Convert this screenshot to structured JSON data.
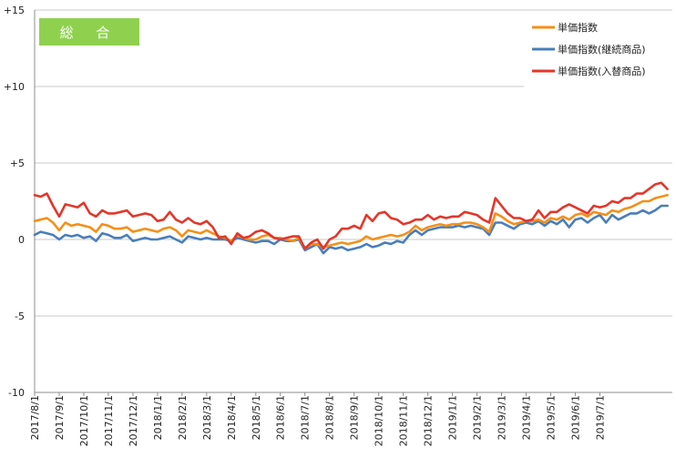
{
  "badge": {
    "label": "総 合",
    "color": "#8fd14f"
  },
  "chart_data": {
    "type": "line",
    "ylim": [
      -10,
      15
    ],
    "y_ticks": [
      {
        "value": 15,
        "label": "+15"
      },
      {
        "value": 10,
        "label": "+10"
      },
      {
        "value": 5,
        "label": "+5"
      },
      {
        "value": 0,
        "label": "0"
      },
      {
        "value": -5,
        "label": "-5"
      },
      {
        "value": -10,
        "label": "-10"
      }
    ],
    "grid": "horizontal",
    "legend_position": "top-right",
    "x_tick_labels": [
      "2017/8/1",
      "2017/9/1",
      "2017/10/1",
      "2017/11/1",
      "2017/12/1",
      "2018/1/1",
      "2018/2/1",
      "2018/3/1",
      "2018/4/1",
      "2018/5/1",
      "2018/6/1",
      "2018/7/1",
      "2018/8/1",
      "2018/9/1",
      "2018/10/1",
      "2018/11/1",
      "2018/12/1",
      "2019/1/1",
      "2019/2/1",
      "2019/3/1",
      "2019/4/1",
      "2019/5/1",
      "2019/6/1",
      "2019/7/1"
    ],
    "series": [
      {
        "name": "単価指数",
        "color": "#f39019",
        "points": [
          [
            0,
            1.2
          ],
          [
            0.25,
            1.3
          ],
          [
            0.5,
            1.4
          ],
          [
            0.75,
            1.1
          ],
          [
            1,
            0.6
          ],
          [
            1.25,
            1.1
          ],
          [
            1.5,
            0.9
          ],
          [
            1.75,
            1.0
          ],
          [
            2,
            0.9
          ],
          [
            2.25,
            0.8
          ],
          [
            2.5,
            0.5
          ],
          [
            2.75,
            1.0
          ],
          [
            3,
            0.9
          ],
          [
            3.25,
            0.7
          ],
          [
            3.5,
            0.7
          ],
          [
            3.75,
            0.8
          ],
          [
            4,
            0.5
          ],
          [
            4.25,
            0.6
          ],
          [
            4.5,
            0.7
          ],
          [
            4.75,
            0.6
          ],
          [
            5,
            0.5
          ],
          [
            5.25,
            0.7
          ],
          [
            5.5,
            0.8
          ],
          [
            5.75,
            0.6
          ],
          [
            6,
            0.2
          ],
          [
            6.25,
            0.6
          ],
          [
            6.5,
            0.5
          ],
          [
            6.75,
            0.4
          ],
          [
            7,
            0.6
          ],
          [
            7.25,
            0.4
          ],
          [
            7.5,
            0.2
          ],
          [
            7.75,
            0.1
          ],
          [
            8,
            -0.1
          ],
          [
            8.25,
            0.3
          ],
          [
            8.5,
            0.1
          ],
          [
            8.75,
            0.0
          ],
          [
            9,
            0.0
          ],
          [
            9.25,
            0.2
          ],
          [
            9.5,
            0.3
          ],
          [
            9.75,
            0.1
          ],
          [
            10,
            0.1
          ],
          [
            10.25,
            0.0
          ],
          [
            10.5,
            -0.1
          ],
          [
            10.75,
            0.1
          ],
          [
            11,
            -0.6
          ],
          [
            11.25,
            -0.3
          ],
          [
            11.5,
            -0.3
          ],
          [
            11.75,
            -0.5
          ],
          [
            12,
            -0.4
          ],
          [
            12.25,
            -0.3
          ],
          [
            12.5,
            -0.2
          ],
          [
            12.75,
            -0.3
          ],
          [
            13,
            -0.2
          ],
          [
            13.25,
            -0.1
          ],
          [
            13.5,
            0.2
          ],
          [
            13.75,
            0.0
          ],
          [
            14,
            0.1
          ],
          [
            14.25,
            0.2
          ],
          [
            14.5,
            0.3
          ],
          [
            14.75,
            0.2
          ],
          [
            15,
            0.3
          ],
          [
            15.25,
            0.5
          ],
          [
            15.5,
            0.9
          ],
          [
            15.75,
            0.6
          ],
          [
            16,
            0.8
          ],
          [
            16.25,
            0.9
          ],
          [
            16.5,
            1.0
          ],
          [
            16.75,
            0.9
          ],
          [
            17,
            1.0
          ],
          [
            17.25,
            1.0
          ],
          [
            17.5,
            1.1
          ],
          [
            17.75,
            1.1
          ],
          [
            18,
            1.0
          ],
          [
            18.25,
            0.8
          ],
          [
            18.5,
            0.5
          ],
          [
            18.75,
            1.7
          ],
          [
            19,
            1.5
          ],
          [
            19.25,
            1.2
          ],
          [
            19.5,
            1.0
          ],
          [
            19.75,
            1.1
          ],
          [
            20,
            1.2
          ],
          [
            20.25,
            1.2
          ],
          [
            20.5,
            1.3
          ],
          [
            20.75,
            1.1
          ],
          [
            21,
            1.4
          ],
          [
            21.25,
            1.3
          ],
          [
            21.5,
            1.5
          ],
          [
            21.75,
            1.3
          ],
          [
            22,
            1.6
          ],
          [
            22.25,
            1.7
          ],
          [
            22.5,
            1.5
          ],
          [
            22.75,
            1.8
          ],
          [
            23,
            1.7
          ],
          [
            23.25,
            1.6
          ],
          [
            23.5,
            1.9
          ],
          [
            23.75,
            1.8
          ],
          [
            24,
            2.0
          ],
          [
            24.25,
            2.1
          ],
          [
            24.5,
            2.3
          ],
          [
            24.75,
            2.5
          ],
          [
            25,
            2.5
          ],
          [
            25.25,
            2.7
          ],
          [
            25.5,
            2.8
          ],
          [
            25.75,
            2.9
          ]
        ]
      },
      {
        "name": "単価指数(継続商品)",
        "color": "#4a7ebb",
        "points": [
          [
            0,
            0.3
          ],
          [
            0.25,
            0.5
          ],
          [
            0.5,
            0.4
          ],
          [
            0.75,
            0.3
          ],
          [
            1,
            0.0
          ],
          [
            1.25,
            0.3
          ],
          [
            1.5,
            0.2
          ],
          [
            1.75,
            0.3
          ],
          [
            2,
            0.1
          ],
          [
            2.25,
            0.2
          ],
          [
            2.5,
            -0.1
          ],
          [
            2.75,
            0.4
          ],
          [
            3,
            0.3
          ],
          [
            3.25,
            0.1
          ],
          [
            3.5,
            0.1
          ],
          [
            3.75,
            0.3
          ],
          [
            4,
            -0.1
          ],
          [
            4.25,
            0.0
          ],
          [
            4.5,
            0.1
          ],
          [
            4.75,
            0.0
          ],
          [
            5,
            0.0
          ],
          [
            5.25,
            0.1
          ],
          [
            5.5,
            0.2
          ],
          [
            5.75,
            0.0
          ],
          [
            6,
            -0.2
          ],
          [
            6.25,
            0.2
          ],
          [
            6.5,
            0.1
          ],
          [
            6.75,
            0.0
          ],
          [
            7,
            0.1
          ],
          [
            7.25,
            0.0
          ],
          [
            7.5,
            0.0
          ],
          [
            7.75,
            0.0
          ],
          [
            8,
            -0.1
          ],
          [
            8.25,
            0.1
          ],
          [
            8.5,
            0.0
          ],
          [
            8.75,
            -0.1
          ],
          [
            9,
            -0.2
          ],
          [
            9.25,
            -0.1
          ],
          [
            9.5,
            -0.1
          ],
          [
            9.75,
            -0.3
          ],
          [
            10,
            0.0
          ],
          [
            10.25,
            -0.1
          ],
          [
            10.5,
            -0.1
          ],
          [
            10.75,
            0.0
          ],
          [
            11,
            -0.7
          ],
          [
            11.25,
            -0.5
          ],
          [
            11.5,
            -0.3
          ],
          [
            11.75,
            -0.9
          ],
          [
            12,
            -0.5
          ],
          [
            12.25,
            -0.6
          ],
          [
            12.5,
            -0.5
          ],
          [
            12.75,
            -0.7
          ],
          [
            13,
            -0.6
          ],
          [
            13.25,
            -0.5
          ],
          [
            13.5,
            -0.3
          ],
          [
            13.75,
            -0.5
          ],
          [
            14,
            -0.4
          ],
          [
            14.25,
            -0.2
          ],
          [
            14.5,
            -0.3
          ],
          [
            14.75,
            -0.1
          ],
          [
            15,
            -0.2
          ],
          [
            15.25,
            0.3
          ],
          [
            15.5,
            0.6
          ],
          [
            15.75,
            0.3
          ],
          [
            16,
            0.6
          ],
          [
            16.25,
            0.7
          ],
          [
            16.5,
            0.8
          ],
          [
            16.75,
            0.8
          ],
          [
            17,
            0.8
          ],
          [
            17.25,
            0.9
          ],
          [
            17.5,
            0.8
          ],
          [
            17.75,
            0.9
          ],
          [
            18,
            0.8
          ],
          [
            18.25,
            0.7
          ],
          [
            18.5,
            0.3
          ],
          [
            18.75,
            1.1
          ],
          [
            19,
            1.1
          ],
          [
            19.25,
            0.9
          ],
          [
            19.5,
            0.7
          ],
          [
            19.75,
            1.0
          ],
          [
            20,
            1.1
          ],
          [
            20.25,
            1.0
          ],
          [
            20.5,
            1.2
          ],
          [
            20.75,
            0.9
          ],
          [
            21,
            1.2
          ],
          [
            21.25,
            1.0
          ],
          [
            21.5,
            1.3
          ],
          [
            21.75,
            0.8
          ],
          [
            22,
            1.3
          ],
          [
            22.25,
            1.4
          ],
          [
            22.5,
            1.1
          ],
          [
            22.75,
            1.4
          ],
          [
            23,
            1.6
          ],
          [
            23.25,
            1.1
          ],
          [
            23.5,
            1.6
          ],
          [
            23.75,
            1.3
          ],
          [
            24,
            1.5
          ],
          [
            24.25,
            1.7
          ],
          [
            24.5,
            1.7
          ],
          [
            24.75,
            1.9
          ],
          [
            25,
            1.7
          ],
          [
            25.25,
            1.9
          ],
          [
            25.5,
            2.2
          ],
          [
            25.75,
            2.2
          ]
        ]
      },
      {
        "name": "単価指数(入替商品)",
        "color": "#e2372b",
        "points": [
          [
            0,
            2.9
          ],
          [
            0.25,
            2.8
          ],
          [
            0.5,
            3.0
          ],
          [
            0.75,
            2.2
          ],
          [
            1,
            1.5
          ],
          [
            1.25,
            2.3
          ],
          [
            1.5,
            2.2
          ],
          [
            1.75,
            2.1
          ],
          [
            2,
            2.4
          ],
          [
            2.25,
            1.7
          ],
          [
            2.5,
            1.5
          ],
          [
            2.75,
            1.9
          ],
          [
            3,
            1.7
          ],
          [
            3.25,
            1.7
          ],
          [
            3.5,
            1.8
          ],
          [
            3.75,
            1.9
          ],
          [
            4,
            1.5
          ],
          [
            4.25,
            1.6
          ],
          [
            4.5,
            1.7
          ],
          [
            4.75,
            1.6
          ],
          [
            5,
            1.2
          ],
          [
            5.25,
            1.3
          ],
          [
            5.5,
            1.8
          ],
          [
            5.75,
            1.3
          ],
          [
            6,
            1.1
          ],
          [
            6.25,
            1.4
          ],
          [
            6.5,
            1.1
          ],
          [
            6.75,
            1.0
          ],
          [
            7,
            1.2
          ],
          [
            7.25,
            0.8
          ],
          [
            7.5,
            0.1
          ],
          [
            7.75,
            0.2
          ],
          [
            8,
            -0.3
          ],
          [
            8.25,
            0.4
          ],
          [
            8.5,
            0.1
          ],
          [
            8.75,
            0.2
          ],
          [
            9,
            0.5
          ],
          [
            9.25,
            0.6
          ],
          [
            9.5,
            0.4
          ],
          [
            9.75,
            0.1
          ],
          [
            10,
            0.0
          ],
          [
            10.25,
            0.1
          ],
          [
            10.5,
            0.2
          ],
          [
            10.75,
            0.2
          ],
          [
            11,
            -0.6
          ],
          [
            11.25,
            -0.2
          ],
          [
            11.5,
            0.0
          ],
          [
            11.75,
            -0.6
          ],
          [
            12,
            0.0
          ],
          [
            12.25,
            0.2
          ],
          [
            12.5,
            0.7
          ],
          [
            12.75,
            0.7
          ],
          [
            13,
            0.9
          ],
          [
            13.25,
            0.7
          ],
          [
            13.5,
            1.6
          ],
          [
            13.75,
            1.2
          ],
          [
            14,
            1.7
          ],
          [
            14.25,
            1.8
          ],
          [
            14.5,
            1.4
          ],
          [
            14.75,
            1.3
          ],
          [
            15,
            1.0
          ],
          [
            15.25,
            1.1
          ],
          [
            15.5,
            1.3
          ],
          [
            15.75,
            1.3
          ],
          [
            16,
            1.6
          ],
          [
            16.25,
            1.3
          ],
          [
            16.5,
            1.5
          ],
          [
            16.75,
            1.4
          ],
          [
            17,
            1.5
          ],
          [
            17.25,
            1.5
          ],
          [
            17.5,
            1.8
          ],
          [
            17.75,
            1.7
          ],
          [
            18,
            1.6
          ],
          [
            18.25,
            1.3
          ],
          [
            18.5,
            1.1
          ],
          [
            18.75,
            2.7
          ],
          [
            19,
            2.2
          ],
          [
            19.25,
            1.7
          ],
          [
            19.5,
            1.4
          ],
          [
            19.75,
            1.4
          ],
          [
            20,
            1.2
          ],
          [
            20.25,
            1.3
          ],
          [
            20.5,
            1.9
          ],
          [
            20.75,
            1.4
          ],
          [
            21,
            1.8
          ],
          [
            21.25,
            1.8
          ],
          [
            21.5,
            2.1
          ],
          [
            21.75,
            2.3
          ],
          [
            22,
            2.1
          ],
          [
            22.25,
            1.9
          ],
          [
            22.5,
            1.7
          ],
          [
            22.75,
            2.2
          ],
          [
            23,
            2.1
          ],
          [
            23.25,
            2.2
          ],
          [
            23.5,
            2.5
          ],
          [
            23.75,
            2.4
          ],
          [
            24,
            2.7
          ],
          [
            24.25,
            2.7
          ],
          [
            24.5,
            3.0
          ],
          [
            24.75,
            3.0
          ],
          [
            25,
            3.3
          ],
          [
            25.25,
            3.6
          ],
          [
            25.5,
            3.7
          ],
          [
            25.75,
            3.3
          ]
        ]
      }
    ]
  }
}
